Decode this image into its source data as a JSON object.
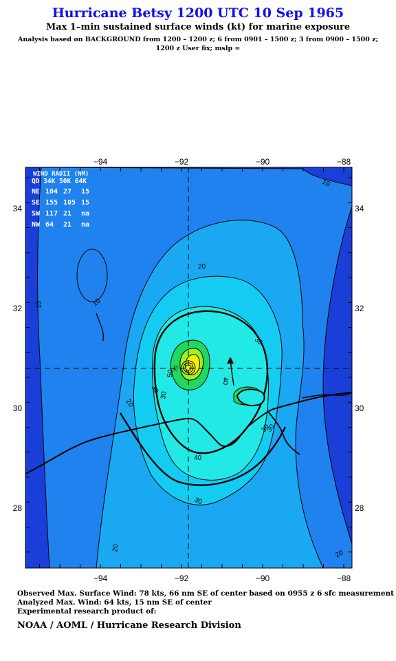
{
  "header": {
    "title": "Hurricane Betsy 1200 UTC 10 Sep 1965",
    "subtitle": "Max 1–min sustained surface winds (kt) for marine exposure",
    "analysis_line1": "Analysis based on  BACKGROUND from 1200 – 1200 z;  6 from 0901 – 1500 z;  3 from 0900 – 1500 z;",
    "analysis_line2": "1200 z User fix; mslp ="
  },
  "map": {
    "lon_ticks": [
      "−94",
      "−92",
      "−90",
      "−88"
    ],
    "lat_ticks": [
      "34",
      "32",
      "30",
      "28"
    ],
    "contour_labels": [
      "10",
      "10",
      "10",
      "20",
      "20",
      "30",
      "30",
      "30",
      "40",
      "40",
      "30",
      "30",
      "20",
      "20",
      "50",
      "30",
      "70"
    ],
    "legend": {
      "title": "WIND RADII (NM)",
      "header": "QD 34K 50K 64K",
      "rows": [
        {
          "qd": "NE",
          "k34": "104",
          "k50": "27",
          "k64": "15"
        },
        {
          "qd": "SE",
          "k34": "155",
          "k50": "105",
          "k64": "15"
        },
        {
          "qd": "SW",
          "k34": "117",
          "k50": "21",
          "k64": "na"
        },
        {
          "qd": "NW",
          "k34": "64",
          "k50": "21",
          "k64": "na"
        }
      ]
    },
    "center": {
      "lon": -91.8,
      "lat": 30.8
    },
    "colors": {
      "lt10": "#1a3fd9",
      "10to20": "#1f82ee",
      "20to30": "#1aa8f2",
      "30to40": "#14ccf2",
      "40to50": "#22e8e6",
      "50to64": "#20d860",
      "64plus": "#9ef020",
      "70plus": "#f0f000"
    }
  },
  "footer": {
    "observed": "Observed Max. Surface Wind: 78 kts, 66 nm SE of center based on 0955 z 6 sfc measurement",
    "analyzed": "Analyzed Max. Wind: 64 kts, 15 nm SE of center",
    "experimental": "Experimental research product of:",
    "org": "NOAA / AOML / Hurricane Research Division"
  }
}
